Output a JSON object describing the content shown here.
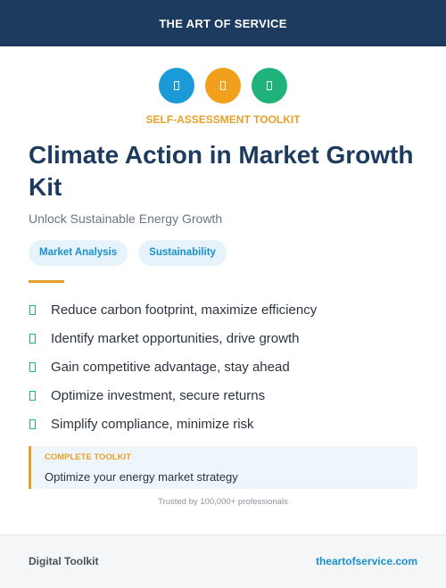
{
  "header": {
    "brand": "THE ART OF SERVICE"
  },
  "badge": "SELF-ASSESSMENT TOOLKIT",
  "title": "Climate Action in Market Growth Kit",
  "subtitle": "Unlock Sustainable Energy Growth",
  "tags": [
    "Market Analysis",
    "Sustainability"
  ],
  "benefits": [
    "Reduce carbon footprint, maximize efficiency",
    "Identify market opportunities, drive growth",
    "Gain competitive advantage, stay ahead",
    "Optimize investment, secure returns",
    "Simplify compliance, minimize risk"
  ],
  "callout": {
    "label": "COMPLETE TOOLKIT",
    "text": "Optimize your energy market strategy"
  },
  "trust": "Trusted by 100,000+ professionals",
  "footer": {
    "left": "Digital Toolkit",
    "right": "theartofservice.com"
  }
}
